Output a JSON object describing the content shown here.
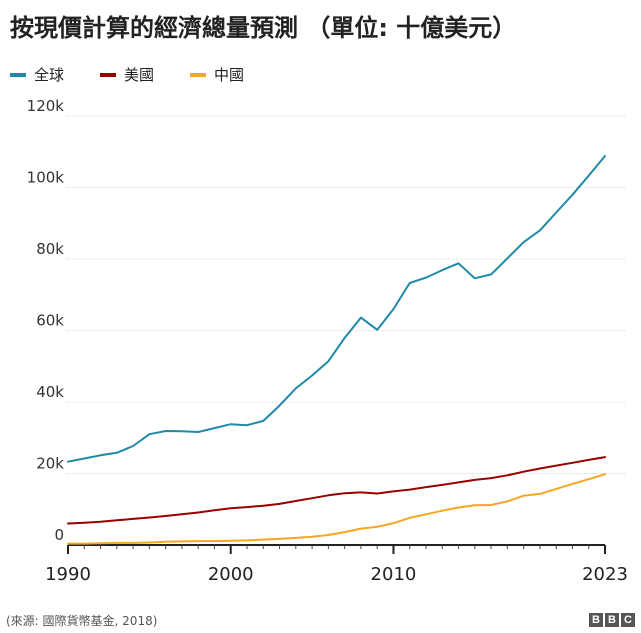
{
  "chart_data": {
    "type": "line",
    "title": "按現價計算的經濟總量預測 （單位: 十億美元）",
    "xlabel": "",
    "ylabel": "",
    "xlim": [
      1990,
      2023
    ],
    "ylim": [
      0,
      120000
    ],
    "x_ticks": [
      1990,
      2000,
      2010,
      2023
    ],
    "x_tick_labels": [
      "1990",
      "2000",
      "2010",
      "2023"
    ],
    "y_ticks": [
      0,
      20000,
      40000,
      60000,
      80000,
      100000,
      120000
    ],
    "y_tick_labels": [
      "0",
      "20k",
      "40k",
      "60k",
      "80k",
      "100k",
      "120k"
    ],
    "grid": "horizontal",
    "legend_position": "top-left",
    "x": [
      1990,
      1991,
      1992,
      1993,
      1994,
      1995,
      1996,
      1997,
      1998,
      1999,
      2000,
      2001,
      2002,
      2003,
      2004,
      2005,
      2006,
      2007,
      2008,
      2009,
      2010,
      2011,
      2012,
      2013,
      2014,
      2015,
      2016,
      2017,
      2018,
      2019,
      2020,
      2021,
      2022,
      2023
    ],
    "series": [
      {
        "name": "全球",
        "color": "#1f8aa6",
        "values": [
          23300,
          24200,
          25100,
          25800,
          27700,
          31000,
          31900,
          31800,
          31600,
          32700,
          33800,
          33500,
          34700,
          39000,
          43800,
          47400,
          51400,
          57900,
          63600,
          60200,
          66000,
          73300,
          74800,
          76900,
          78800,
          74600,
          75700,
          80200,
          84700,
          88000,
          93000,
          98000,
          103300,
          108800
        ]
      },
      {
        "name": "美國",
        "color": "#990000",
        "values": [
          6000,
          6200,
          6500,
          6900,
          7300,
          7700,
          8100,
          8600,
          9100,
          9700,
          10300,
          10600,
          11000,
          11500,
          12300,
          13100,
          13900,
          14500,
          14700,
          14400,
          15000,
          15500,
          16200,
          16800,
          17500,
          18200,
          18700,
          19500,
          20500,
          21400,
          22200,
          23000,
          23800,
          24600
        ]
      },
      {
        "name": "中國",
        "color": "#f5a623",
        "values": [
          400,
          400,
          500,
          600,
          600,
          700,
          900,
          1000,
          1100,
          1100,
          1200,
          1300,
          1500,
          1700,
          2000,
          2300,
          2800,
          3600,
          4600,
          5100,
          6100,
          7600,
          8600,
          9600,
          10500,
          11100,
          11200,
          12200,
          13800,
          14300,
          15700,
          17100,
          18400,
          19800
        ]
      }
    ]
  },
  "footer": {
    "source": "(來源: 國際貨幣基金, 2018)",
    "logo_letters": [
      "B",
      "B",
      "C"
    ]
  }
}
